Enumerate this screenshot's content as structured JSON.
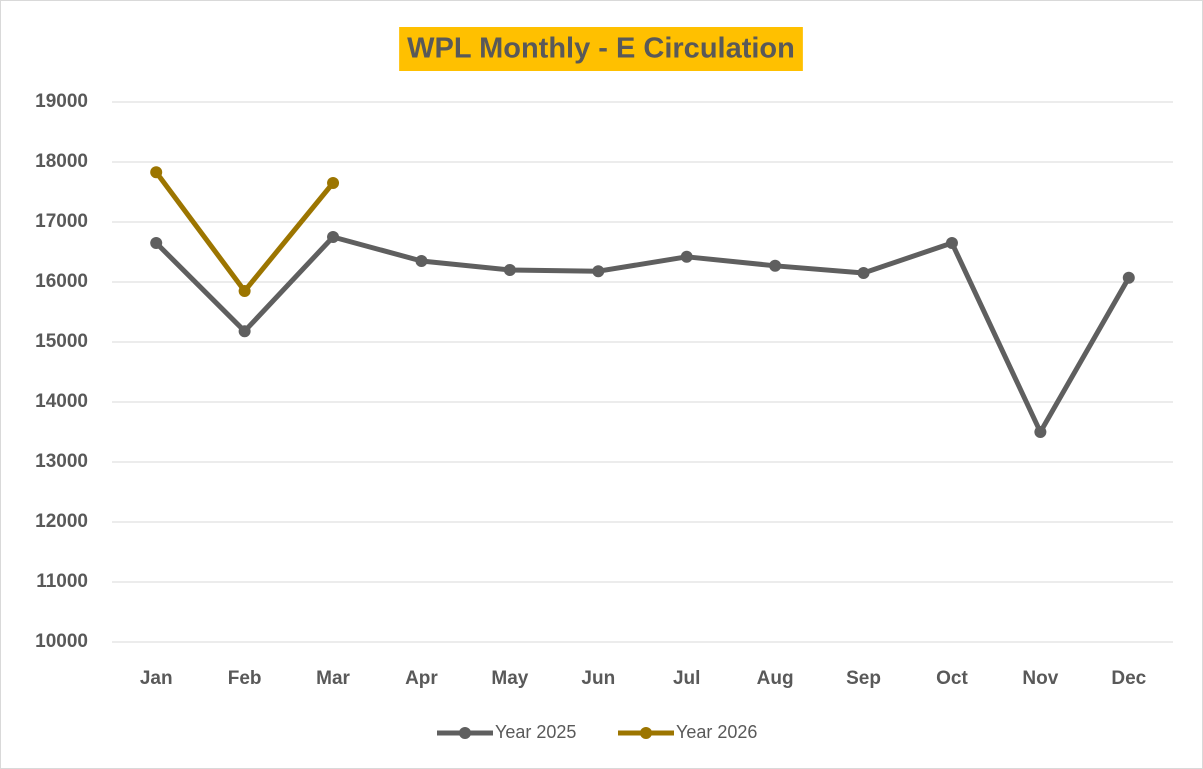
{
  "chart_data": {
    "type": "line",
    "title": "WPL Monthly - E Circulation",
    "categories": [
      "Jan",
      "Feb",
      "Mar",
      "Apr",
      "May",
      "Jun",
      "Jul",
      "Aug",
      "Sep",
      "Oct",
      "Nov",
      "Dec"
    ],
    "series": [
      {
        "name": "Year 2025",
        "color": "#5f5f5f",
        "values": [
          16650,
          15180,
          16750,
          16350,
          16200,
          16180,
          16420,
          16270,
          16150,
          16650,
          13500,
          16070
        ]
      },
      {
        "name": "Year 2026",
        "color": "#9c7500",
        "values": [
          17830,
          15850,
          17650,
          null,
          null,
          null,
          null,
          null,
          null,
          null,
          null,
          null
        ]
      }
    ],
    "ylim": [
      10000,
      19000
    ],
    "yticks": [
      10000,
      11000,
      12000,
      13000,
      14000,
      15000,
      16000,
      17000,
      18000,
      19000
    ],
    "grid": true,
    "legend": "bottom",
    "title_background": "#ffc000"
  }
}
